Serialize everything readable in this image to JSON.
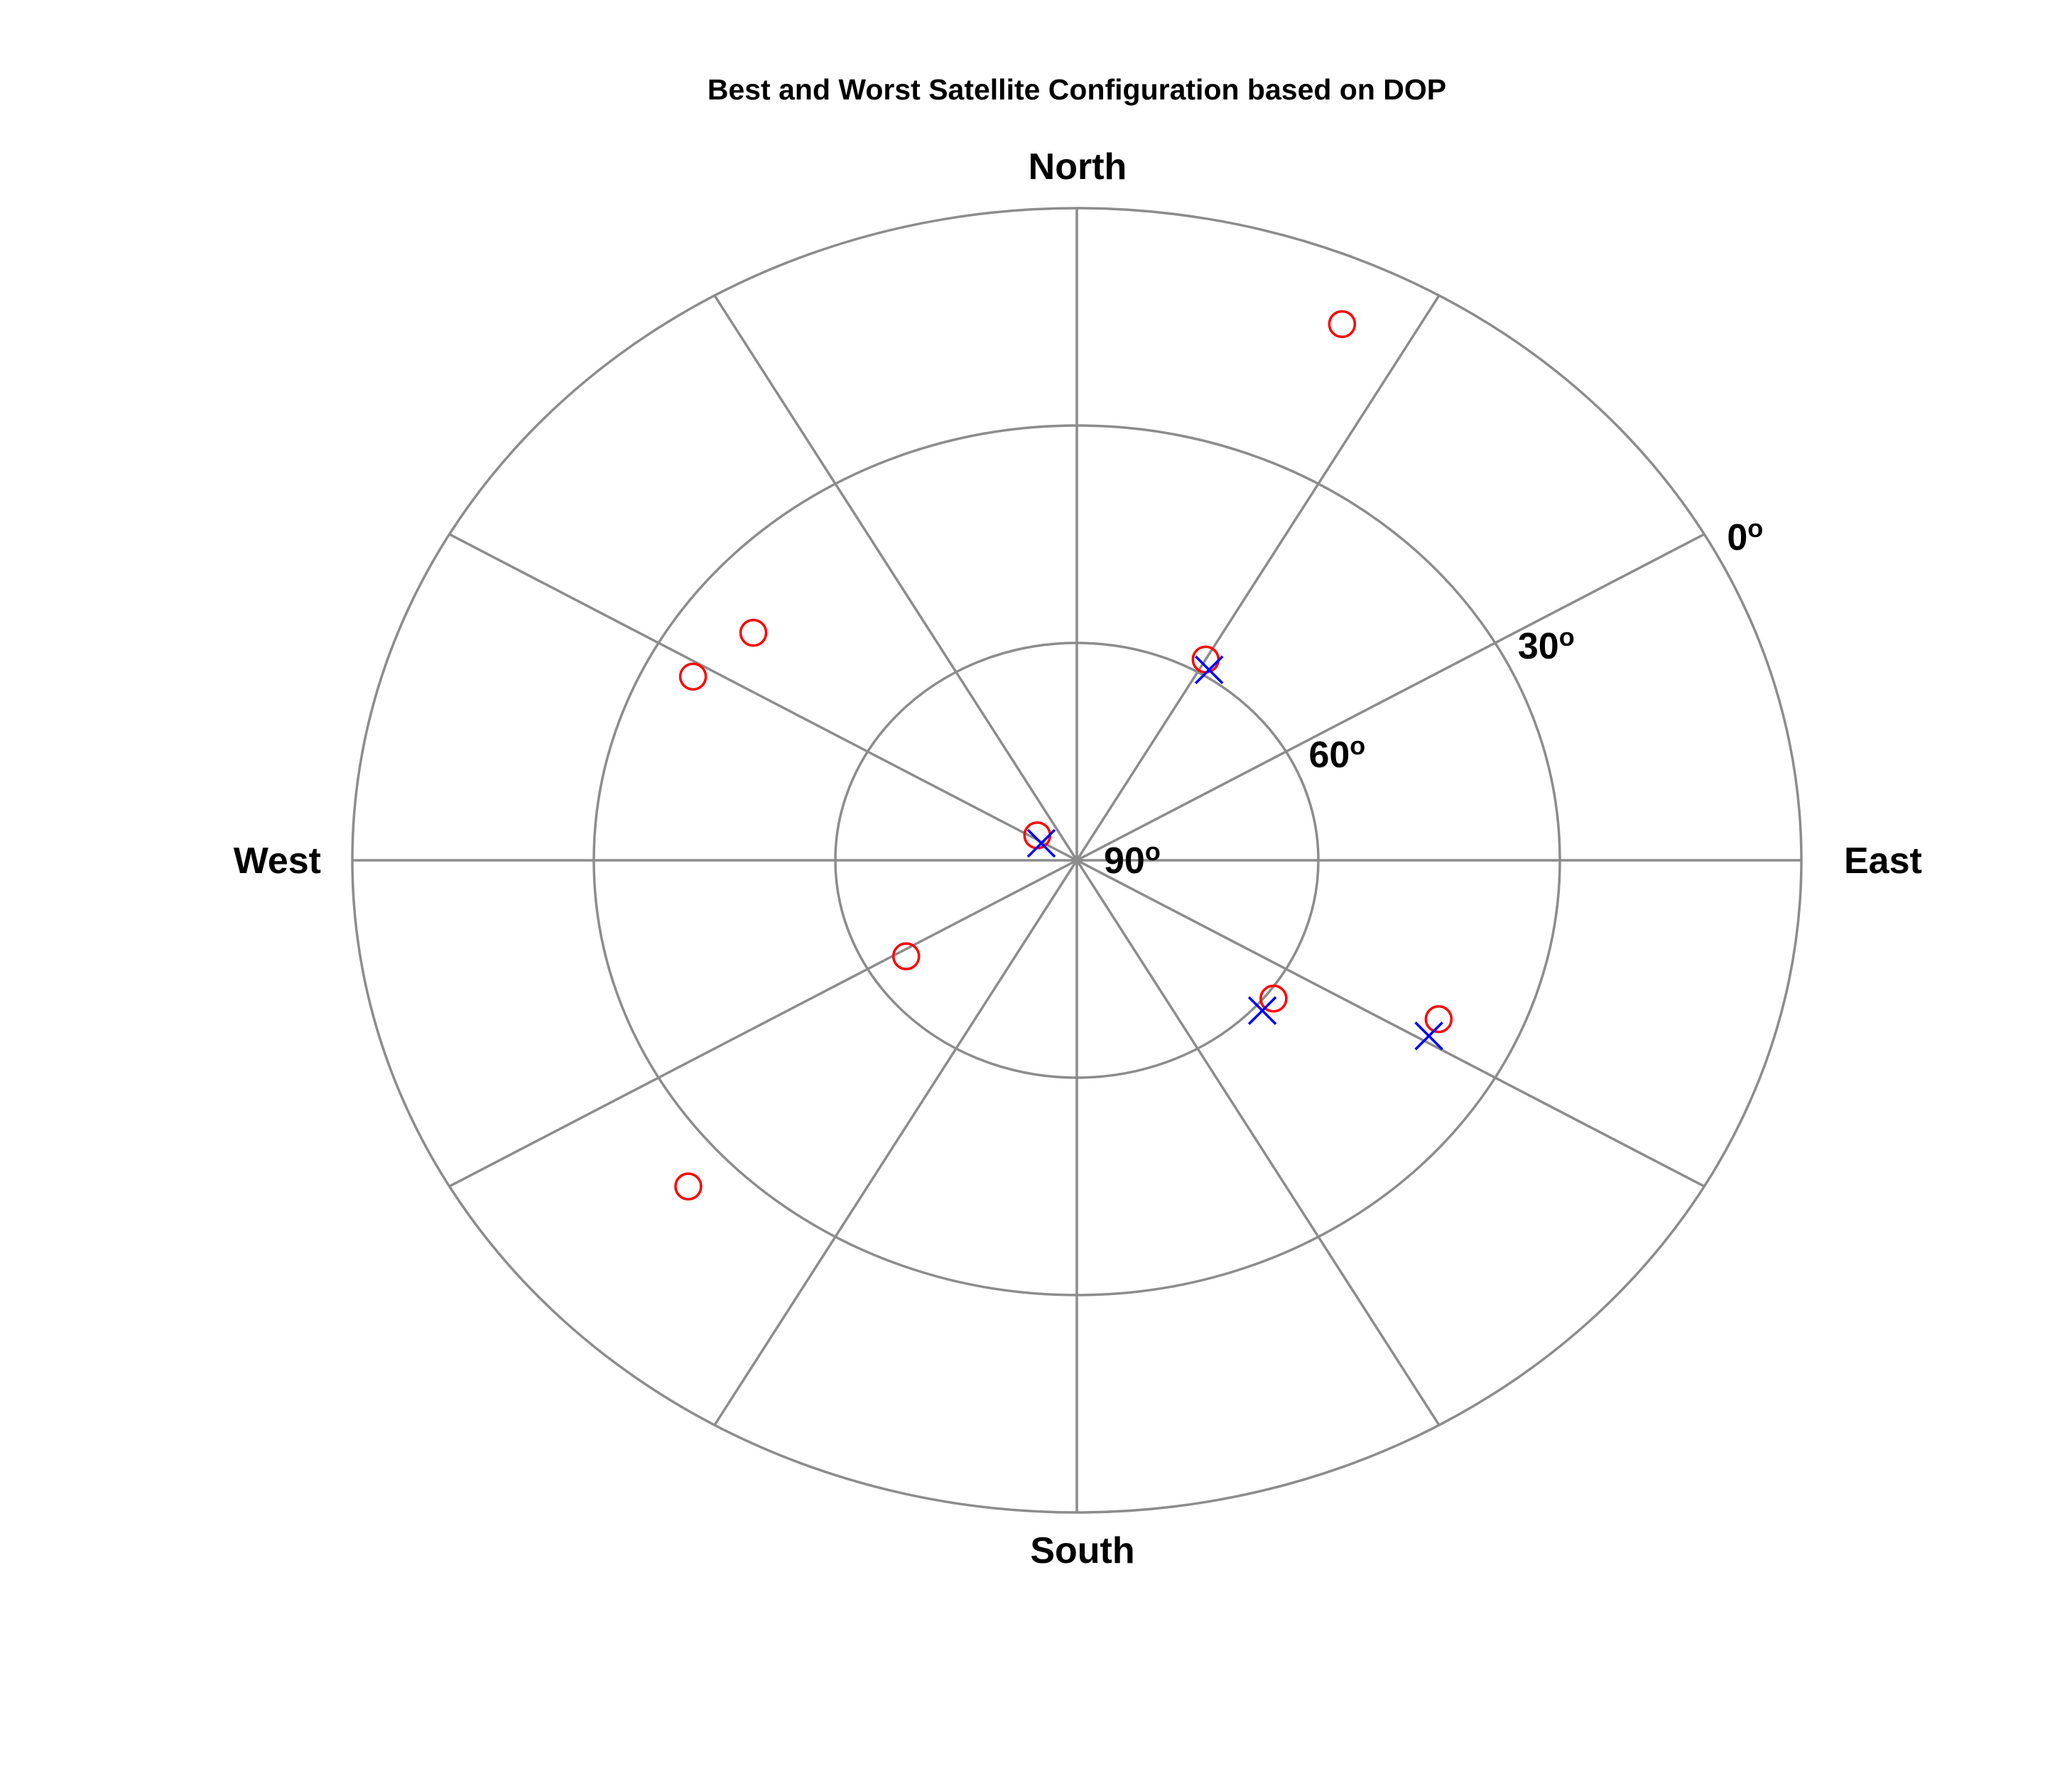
{
  "chart_data": {
    "type": "scatter",
    "projection": "polar sky plot (azimuth clockwise from North, elevation 90° at center, 0° at rim)",
    "title": "Best and Worst Satellite Configuration based on DOP",
    "direction_labels": {
      "north": "North",
      "east": "East",
      "south": "South",
      "west": "West"
    },
    "elevation_rings": [
      0,
      30,
      60,
      90
    ],
    "elevation_tick_labels": [
      "0",
      "30",
      "60",
      "90"
    ],
    "degree_symbol": "o",
    "azimuth_spokes_deg": [
      0,
      30,
      60,
      90,
      120,
      150,
      180,
      210,
      240,
      270,
      300,
      330
    ],
    "ring_label_azimuth_deg": 60,
    "grid": true,
    "grid_color": "#8c8c8c",
    "series": [
      {
        "marker": "circle",
        "color": "#ff0000",
        "points": [
          {
            "azimuth": 24,
            "elevation": 9
          },
          {
            "azimuth": 30,
            "elevation": 58
          },
          {
            "azimuth": 308,
            "elevation": 39
          },
          {
            "azimuth": 298,
            "elevation": 36
          },
          {
            "azimuth": 305,
            "elevation": 84
          },
          {
            "azimuth": 238,
            "elevation": 65
          },
          {
            "azimuth": 227,
            "elevation": 24
          },
          {
            "azimuth": 128,
            "elevation": 59
          },
          {
            "azimuth": 116,
            "elevation": 40
          }
        ]
      },
      {
        "marker": "x",
        "color": "#0000ff",
        "points": [
          {
            "azimuth": 32,
            "elevation": 59
          },
          {
            "azimuth": 298,
            "elevation": 85
          },
          {
            "azimuth": 132,
            "elevation": 59
          },
          {
            "azimuth": 119,
            "elevation": 40
          }
        ]
      }
    ]
  }
}
